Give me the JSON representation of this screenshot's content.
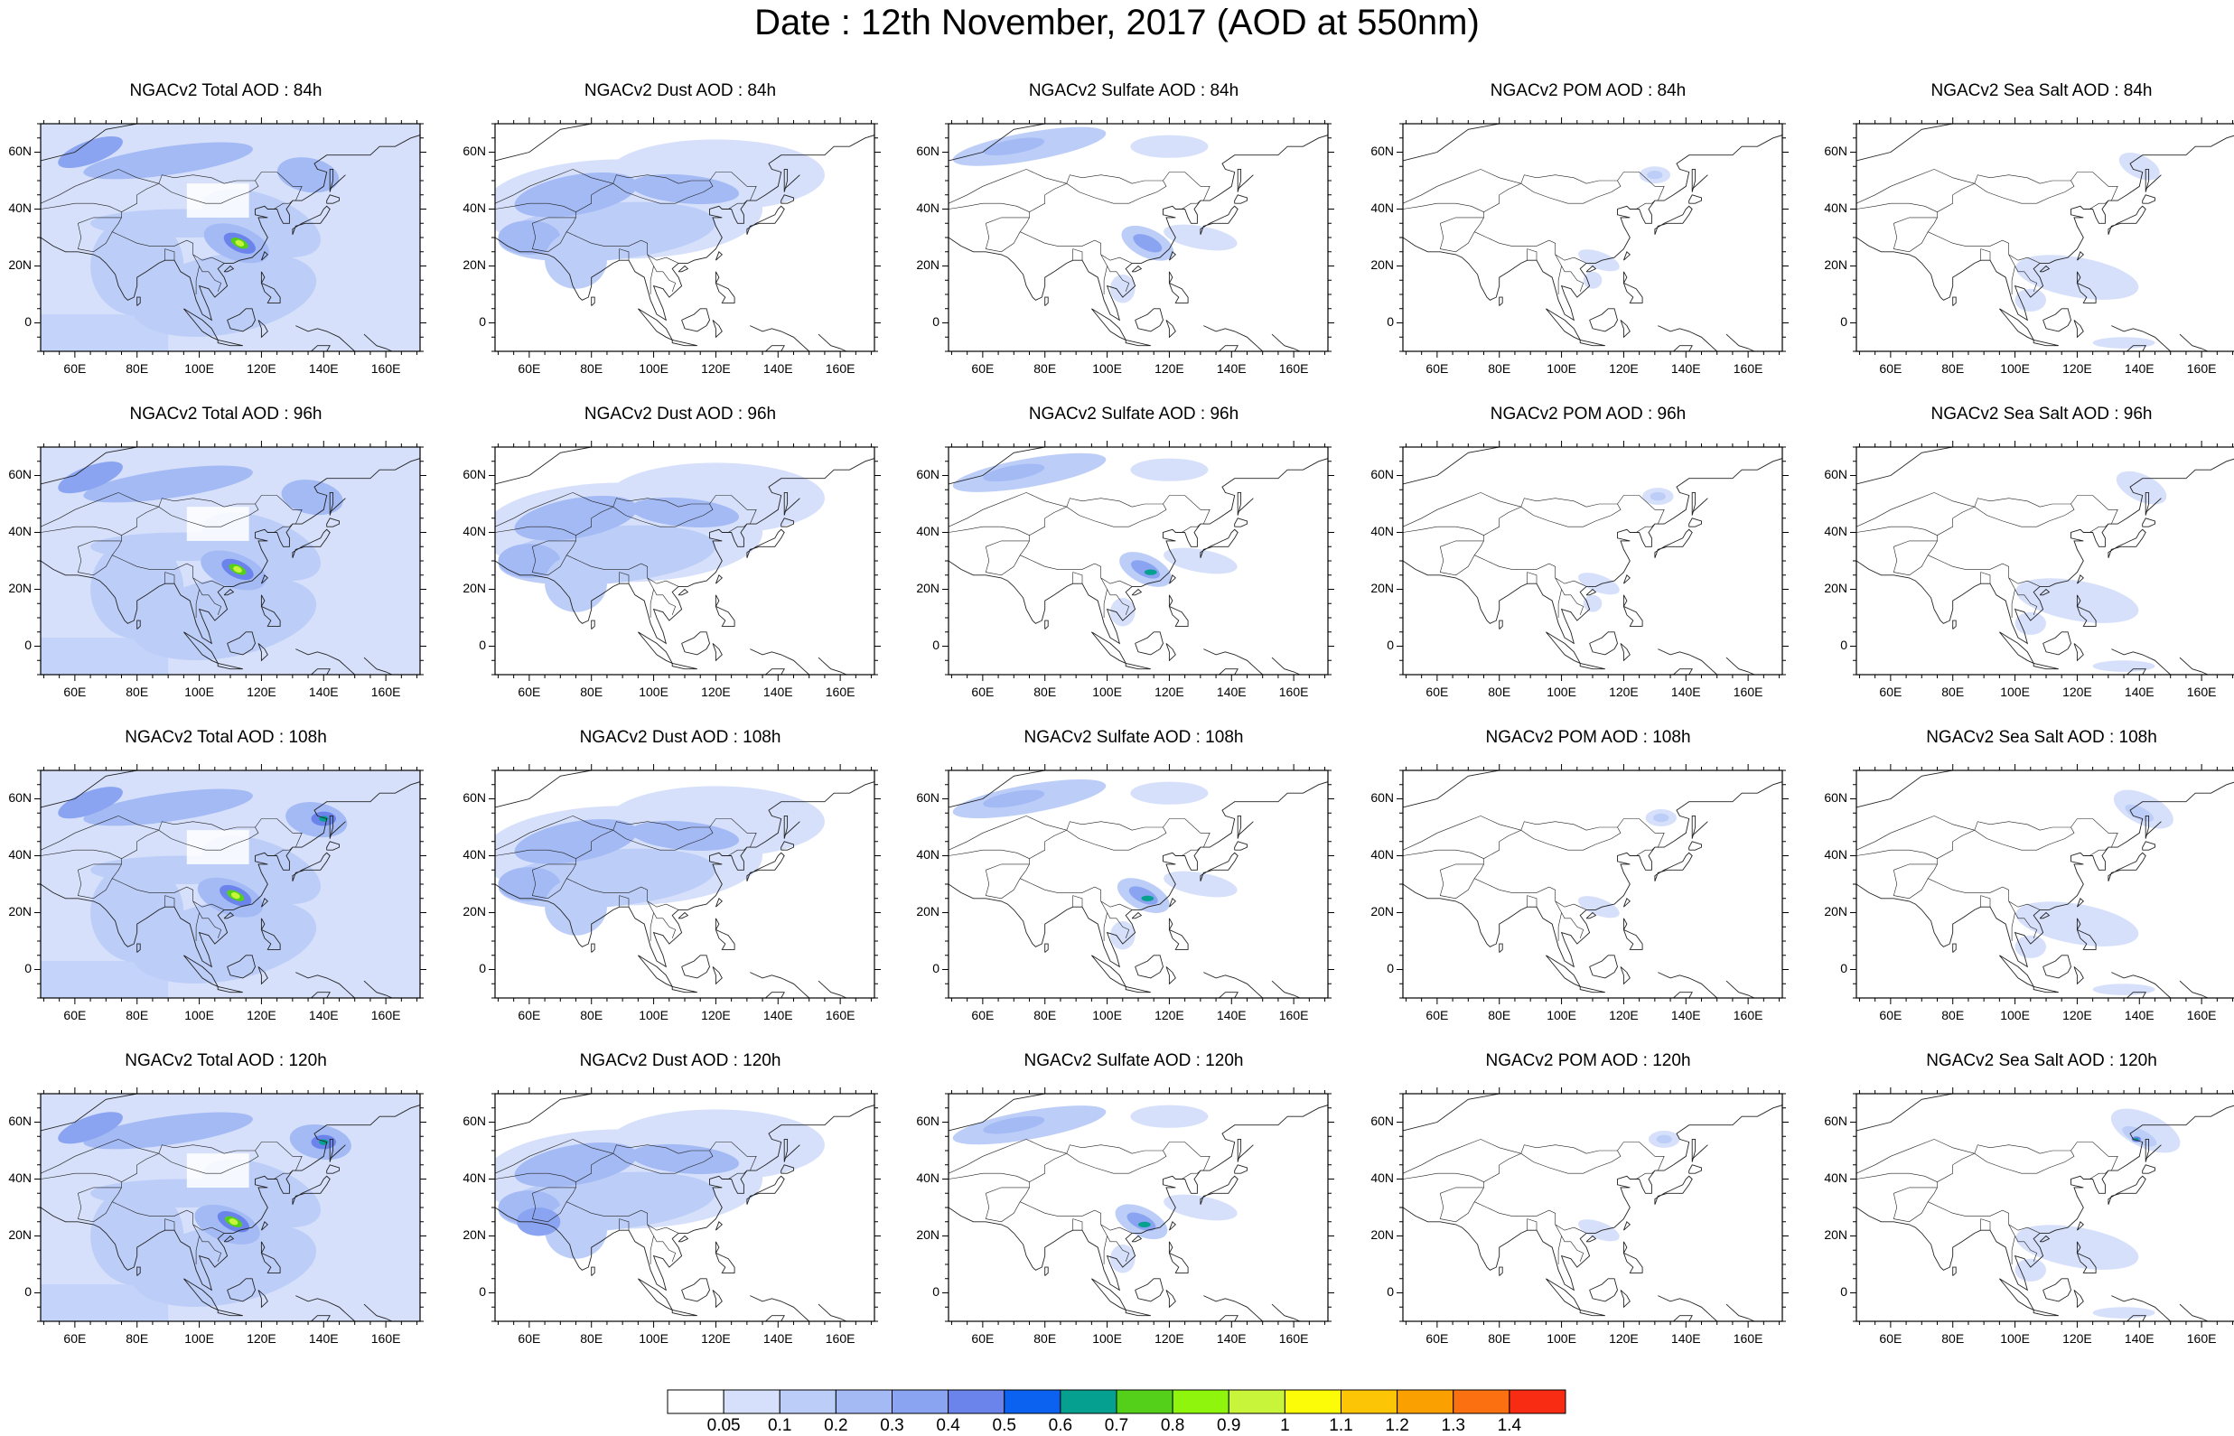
{
  "title": "Date : 12th November, 2017 (AOD at 550nm)",
  "lat_ticks": [
    "60N",
    "40N",
    "20N",
    "0"
  ],
  "lon_ticks": [
    "60E",
    "80E",
    "100E",
    "120E",
    "140E",
    "160E"
  ],
  "panels": [
    {
      "title": "NGACv2 Total AOD : 84h",
      "species": "total",
      "lead": 84
    },
    {
      "title": "NGACv2 Dust AOD : 84h",
      "species": "dust",
      "lead": 84
    },
    {
      "title": "NGACv2 Sulfate AOD : 84h",
      "species": "sulfate",
      "lead": 84
    },
    {
      "title": "NGACv2 POM AOD : 84h",
      "species": "pom",
      "lead": 84
    },
    {
      "title": "NGACv2 Sea Salt AOD : 84h",
      "species": "seasalt",
      "lead": 84
    },
    {
      "title": "NGACv2 Total AOD : 96h",
      "species": "total",
      "lead": 96
    },
    {
      "title": "NGACv2 Dust AOD : 96h",
      "species": "dust",
      "lead": 96
    },
    {
      "title": "NGACv2 Sulfate AOD : 96h",
      "species": "sulfate",
      "lead": 96
    },
    {
      "title": "NGACv2 POM AOD : 96h",
      "species": "pom",
      "lead": 96
    },
    {
      "title": "NGACv2 Sea Salt AOD : 96h",
      "species": "seasalt",
      "lead": 96
    },
    {
      "title": "NGACv2 Total AOD : 108h",
      "species": "total",
      "lead": 108
    },
    {
      "title": "NGACv2 Dust AOD : 108h",
      "species": "dust",
      "lead": 108
    },
    {
      "title": "NGACv2 Sulfate AOD : 108h",
      "species": "sulfate",
      "lead": 108
    },
    {
      "title": "NGACv2 POM AOD : 108h",
      "species": "pom",
      "lead": 108
    },
    {
      "title": "NGACv2 Sea Salt AOD : 108h",
      "species": "seasalt",
      "lead": 108
    },
    {
      "title": "NGACv2 Total AOD : 120h",
      "species": "total",
      "lead": 120
    },
    {
      "title": "NGACv2 Dust AOD : 120h",
      "species": "dust",
      "lead": 120
    },
    {
      "title": "NGACv2 Sulfate AOD : 120h",
      "species": "sulfate",
      "lead": 120
    },
    {
      "title": "NGACv2 POM AOD : 120h",
      "species": "pom",
      "lead": 120
    },
    {
      "title": "NGACv2 Sea Salt  AOD : 120h",
      "species": "seasalt",
      "lead": 120
    }
  ],
  "colorbar": {
    "labels": [
      "0.05",
      "0.1",
      "0.2",
      "0.3",
      "0.4",
      "0.5",
      "0.6",
      "0.7",
      "0.8",
      "0.9",
      "1",
      "1.1",
      "1.2",
      "1.3",
      "1.4"
    ],
    "colors": [
      "#ffffff",
      "#d6e0fb",
      "#bccdf8",
      "#a4baf5",
      "#8aa4f1",
      "#6b84ec",
      "#0b62f0",
      "#06a091",
      "#54d01a",
      "#8ff50c",
      "#c8f53a",
      "#fcfc09",
      "#fcc505",
      "#fba001",
      "#fb7111",
      "#f82b13"
    ]
  }
}
